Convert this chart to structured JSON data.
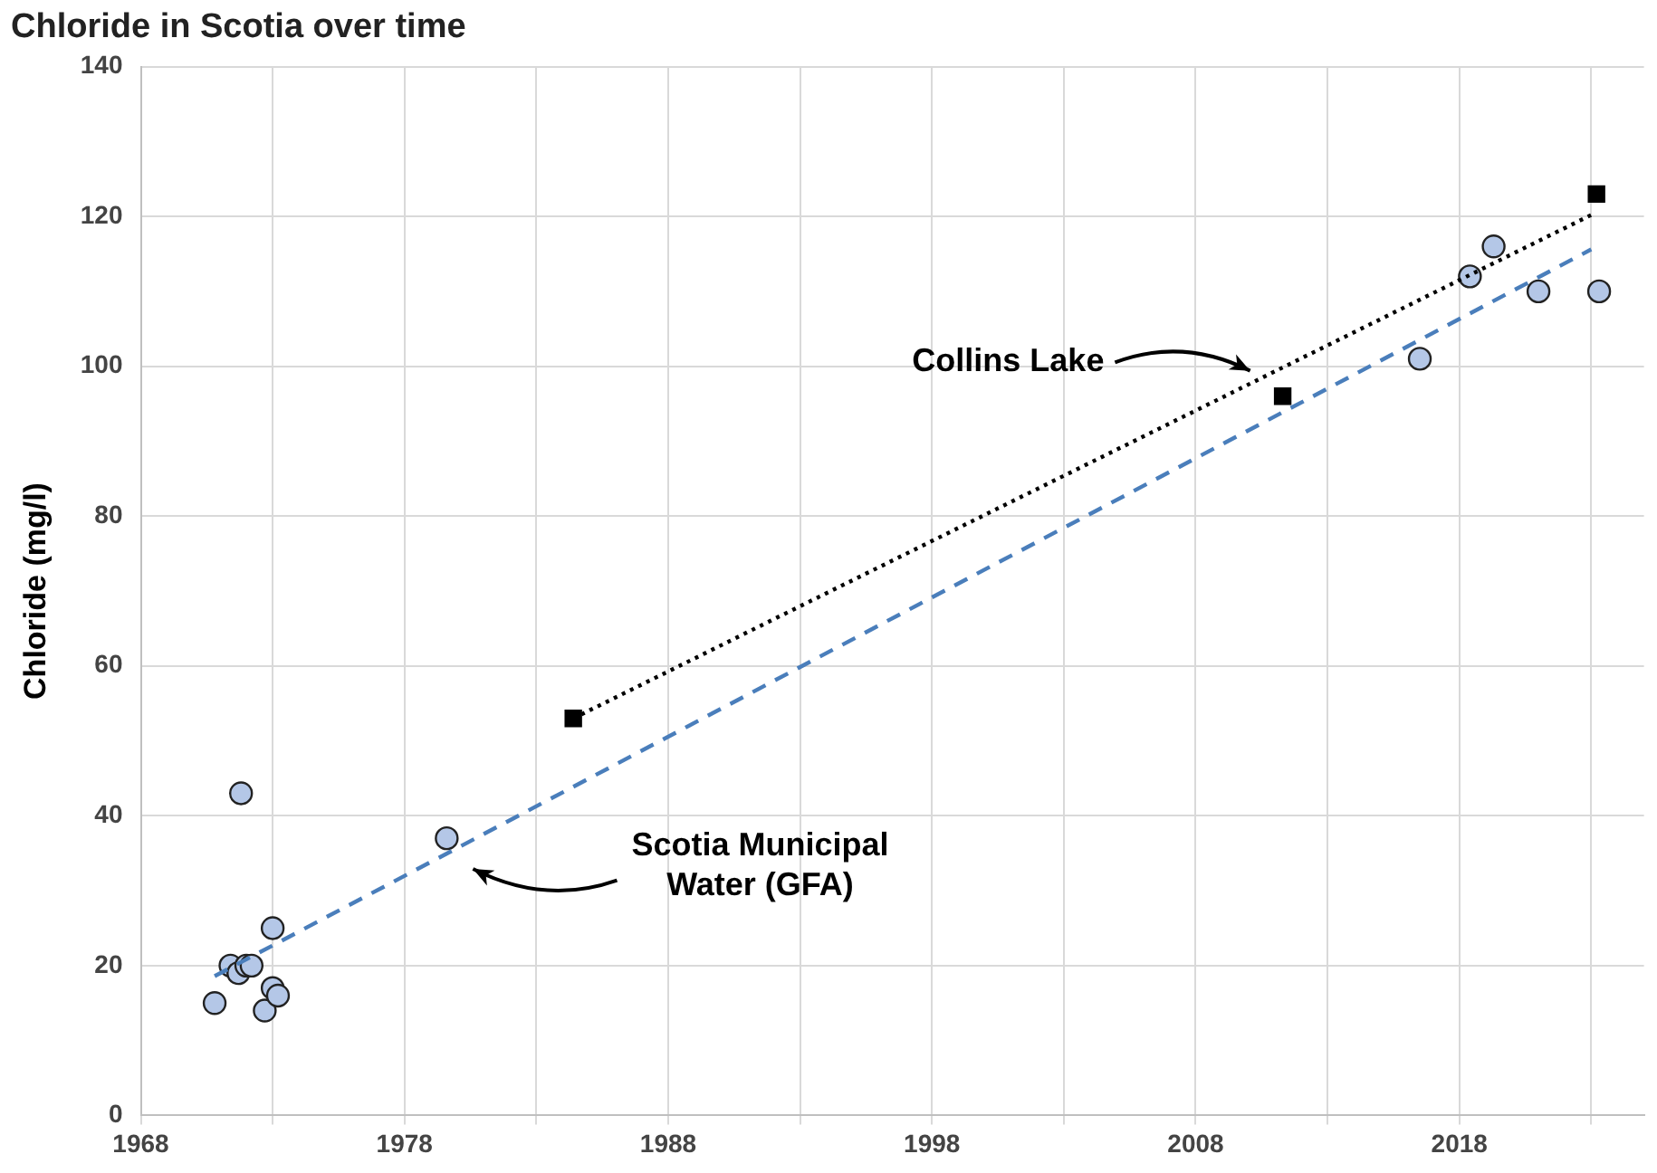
{
  "chart_data": {
    "type": "scatter",
    "title": "Chloride in Scotia over time",
    "ylabel": "Chloride (mg/l)",
    "xlim": [
      1968,
      2025
    ],
    "xticks": [
      1968,
      {
        "value": 1973,
        "label": null
      },
      1978,
      {
        "value": 1983,
        "label": null
      },
      1988,
      {
        "value": 1993,
        "label": null
      },
      1998,
      {
        "value": 2003,
        "label": null
      },
      2008,
      {
        "value": 2013,
        "label": null
      },
      2018,
      {
        "value": 2023,
        "label": null
      }
    ],
    "ylim": [
      0,
      140
    ],
    "yticks": [
      0,
      20,
      40,
      60,
      80,
      100,
      120,
      140
    ],
    "grid": true,
    "legend": false,
    "series": [
      {
        "type": "scatter",
        "marker": "circle",
        "color": "#b4c7e7",
        "x": [
          1970.8,
          1971.4,
          1971.7,
          1971.8,
          1972.0,
          1972.2,
          1972.7,
          1973.0,
          1973.0,
          1973.2,
          1979.6,
          2016.5,
          2018.4,
          2019.3,
          2021.0,
          2023.3
        ],
        "values": [
          15,
          20,
          19,
          43,
          20,
          20,
          14,
          25,
          17,
          16,
          37,
          101,
          112,
          116,
          110,
          110
        ]
      },
      {
        "type": "scatter",
        "marker": "square",
        "color": "#000000",
        "x": [
          1984.4,
          2011.3,
          2023.2
        ],
        "values": [
          53,
          96,
          123
        ]
      },
      {
        "type": "line",
        "line_style": "dashed",
        "color": "#4a7ebb",
        "x": [
          1970.8,
          2023.0
        ],
        "values": [
          18.6,
          115.6
        ]
      },
      {
        "type": "line",
        "line_style": "dotted",
        "color": "#000000",
        "x": [
          1984.4,
          2023.0
        ],
        "values": [
          53,
          120.2
        ]
      }
    ],
    "annotations": [
      "Collins Lake",
      "Scotia Municipal Water (GFA)"
    ]
  }
}
